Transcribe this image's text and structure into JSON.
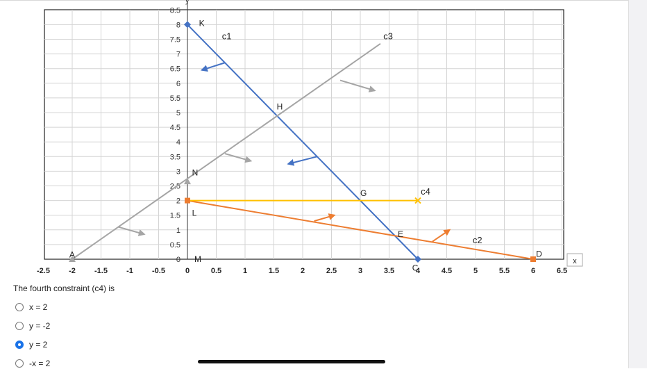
{
  "graph": {
    "type": "line",
    "axis_y_label_fragment": "y",
    "axis_x_label": "x",
    "x_ticks": [
      "-2.5",
      "-2",
      "-1.5",
      "-1",
      "-0.5",
      "0",
      "0.5",
      "1",
      "1.5",
      "2",
      "2.5",
      "3",
      "3.5",
      "4",
      "4.5",
      "5",
      "5.5",
      "6",
      "6.5"
    ],
    "y_ticks": [
      "0",
      "0.5",
      "1",
      "1.5",
      "2",
      "2.5",
      "3",
      "3.5",
      "4",
      "4.5",
      "5",
      "5.5",
      "6",
      "6.5",
      "7",
      "7.5",
      "8",
      "8.5"
    ],
    "xlim": [
      -2.5,
      6.5
    ],
    "ylim": [
      0,
      8.5
    ],
    "grid": true,
    "colors": {
      "c1": "#4472c4",
      "c2": "#ed7d31",
      "c3": "#a5a5a5",
      "c4": "#ffc000"
    },
    "lines": [
      {
        "name": "c1",
        "from": [
          0,
          8
        ],
        "to": [
          4,
          0
        ],
        "color": "#4472c4",
        "label": "c1",
        "label_at": [
          0.6,
          7.5
        ],
        "arrows": [
          {
            "from": [
              0.65,
              6.7
            ],
            "to": [
              0.25,
              6.45
            ]
          },
          {
            "from": [
              2.25,
              3.5
            ],
            "to": [
              1.75,
              3.25
            ]
          }
        ]
      },
      {
        "name": "c2",
        "from": [
          0,
          2
        ],
        "to": [
          6,
          0
        ],
        "color": "#ed7d31",
        "label": "c2",
        "label_at": [
          4.95,
          0.55
        ],
        "arrows": [
          {
            "from": [
              2.2,
              1.3
            ],
            "to": [
              2.55,
              1.5
            ]
          },
          {
            "from": [
              4.25,
              0.6
            ],
            "to": [
              4.55,
              1.0
            ]
          }
        ]
      },
      {
        "name": "c3",
        "from": [
          -2,
          0
        ],
        "to": [
          3.35,
          7.35
        ],
        "color": "#a5a5a5",
        "label": "c3",
        "label_at": [
          3.4,
          7.5
        ],
        "arrows": [
          {
            "from": [
              -1.2,
              1.1
            ],
            "to": [
              -0.75,
              0.85
            ]
          },
          {
            "from": [
              0.65,
              3.6
            ],
            "to": [
              1.1,
              3.35
            ]
          },
          {
            "from": [
              2.65,
              6.1
            ],
            "to": [
              3.25,
              5.75
            ]
          }
        ]
      },
      {
        "name": "c4",
        "from": [
          0,
          2
        ],
        "to": [
          4,
          2
        ],
        "color": "#ffc000",
        "label": "c4",
        "label_at": [
          4.05,
          2.2
        ],
        "arrows": []
      }
    ],
    "markers": [
      {
        "x": 0,
        "y": 8,
        "shape": "diamond",
        "color": "#4472c4"
      },
      {
        "x": 4,
        "y": 0,
        "shape": "diamond",
        "color": "#4472c4"
      },
      {
        "x": 0,
        "y": 2,
        "shape": "square",
        "color": "#ed7d31"
      },
      {
        "x": 6,
        "y": 0,
        "shape": "square",
        "color": "#ed7d31"
      },
      {
        "x": -2,
        "y": 0,
        "shape": "triangle",
        "color": "#a5a5a5"
      },
      {
        "x": 0,
        "y": 2.65,
        "shape": "triangle",
        "color": "#a5a5a5"
      },
      {
        "x": 4,
        "y": 2,
        "shape": "cross",
        "color": "#ffc000"
      }
    ],
    "points": [
      {
        "label": "K",
        "at": [
          0.2,
          8.05
        ]
      },
      {
        "label": "H",
        "at": [
          1.55,
          5.2
        ]
      },
      {
        "label": "N",
        "at": [
          0.08,
          2.95
        ]
      },
      {
        "label": "G",
        "at": [
          3.0,
          2.25
        ]
      },
      {
        "label": "L",
        "at": [
          0.08,
          1.58
        ]
      },
      {
        "label": "E",
        "at": [
          3.65,
          0.85
        ]
      },
      {
        "label": "D",
        "at": [
          6.05,
          0.18
        ]
      },
      {
        "label": "A",
        "at": [
          -2.05,
          0.15
        ]
      },
      {
        "label": "M",
        "at": [
          0.12,
          0.0
        ]
      },
      {
        "label": "C",
        "at": [
          3.9,
          -0.3
        ]
      }
    ]
  },
  "question": {
    "text": "The fourth constraint (c4) is",
    "options": [
      {
        "label": "x  = 2",
        "selected": false
      },
      {
        "label": "y = -2",
        "selected": false
      },
      {
        "label": "y  = 2",
        "selected": true
      },
      {
        "label": "-x = 2",
        "selected": false
      }
    ]
  }
}
